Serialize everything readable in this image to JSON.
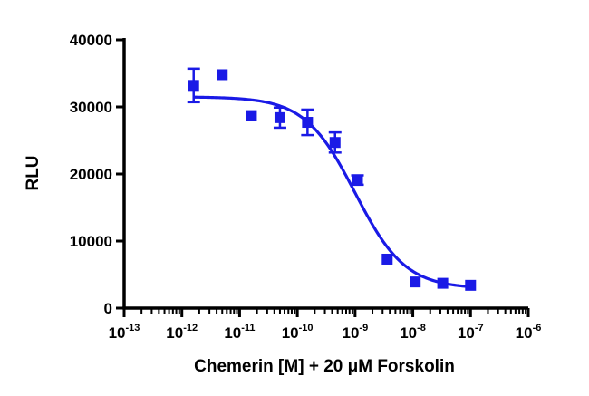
{
  "chart_data": {
    "type": "scatter",
    "title": "",
    "xlabel": "Chemerin [M] + 20 μM Forskolin",
    "ylabel": "RLU",
    "x_scale": "log",
    "xlim": [
      1e-13,
      1e-06
    ],
    "ylim": [
      0,
      40000
    ],
    "x_ticks": [
      {
        "base": "10",
        "exp": "-13"
      },
      {
        "base": "10",
        "exp": "-12"
      },
      {
        "base": "10",
        "exp": "-11"
      },
      {
        "base": "10",
        "exp": "-10"
      },
      {
        "base": "10",
        "exp": "-9"
      },
      {
        "base": "10",
        "exp": "-8"
      },
      {
        "base": "10",
        "exp": "-7"
      },
      {
        "base": "10",
        "exp": "-6"
      }
    ],
    "y_ticks": [
      "0",
      "10000",
      "20000",
      "30000",
      "40000"
    ],
    "grid": false,
    "legend": "none",
    "series": [
      {
        "marker": "square",
        "color": "#1a1ae6",
        "points": [
          {
            "x": 1.6e-12,
            "y": 33200,
            "err": 2500
          },
          {
            "x": 5e-12,
            "y": 34800,
            "err": 0
          },
          {
            "x": 1.6e-11,
            "y": 28700,
            "err": 0
          },
          {
            "x": 5e-11,
            "y": 28400,
            "err": 1500
          },
          {
            "x": 1.5e-10,
            "y": 27700,
            "err": 1900
          },
          {
            "x": 4.5e-10,
            "y": 24700,
            "err": 1500
          },
          {
            "x": 1.1e-09,
            "y": 19100,
            "err": 700
          },
          {
            "x": 3.6e-09,
            "y": 7300,
            "err": 0
          },
          {
            "x": 1.1e-08,
            "y": 3900,
            "err": 0
          },
          {
            "x": 3.3e-08,
            "y": 3700,
            "err": 0
          },
          {
            "x": 1e-07,
            "y": 3400,
            "err": 0
          }
        ]
      }
    ],
    "fit_curve": {
      "model": "sigmoidal dose-response",
      "top": 31500,
      "bottom": 2900,
      "log_ec50": -9.0,
      "hill_slope": -1.0,
      "x_range": [
        1.6e-12,
        1e-07
      ],
      "color": "#1a1ae6"
    }
  }
}
